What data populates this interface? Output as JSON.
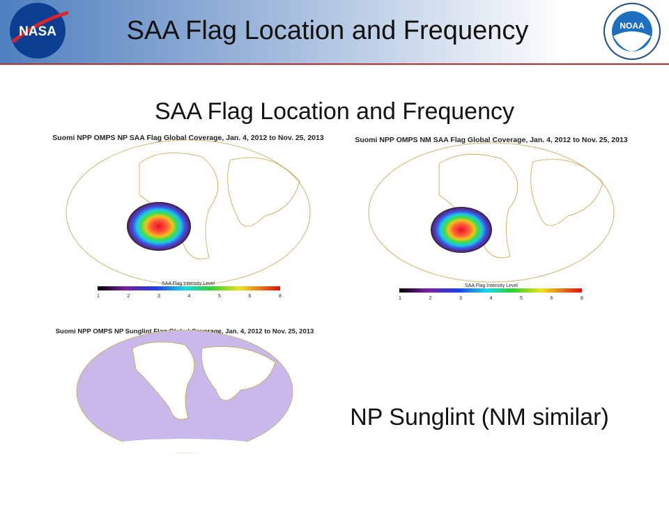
{
  "header": {
    "title": "SAA Flag Location and Frequency",
    "left_logo": "NASA",
    "right_logo": "NOAA"
  },
  "slide": {
    "subtitle": "SAA Flag Location and Frequency",
    "caption": "NP Sunglint (NM similar)"
  },
  "panels": [
    {
      "title": "Suomi NPP OMPS NP SAA Flag Global Coverage, Jan. 4, 2012 to Nov. 25, 2013",
      "colorbar": {
        "label": "SAA Flag Intensity Level",
        "ticks": [
          1,
          2,
          3,
          4,
          5,
          6,
          8
        ]
      }
    },
    {
      "title": "Suomi NPP OMPS NM SAA Flag Global Coverage, Jan. 4, 2012 to Nov. 25, 2013",
      "colorbar": {
        "label": "SAA Flag Intensity Level",
        "ticks": [
          1,
          2,
          3,
          4,
          5,
          6,
          8
        ]
      }
    },
    {
      "title": "Suomi NPP OMPS NP Sunglint Flag Global Coverage, Jan. 4, 2012 to Nov. 25, 2013"
    }
  ]
}
